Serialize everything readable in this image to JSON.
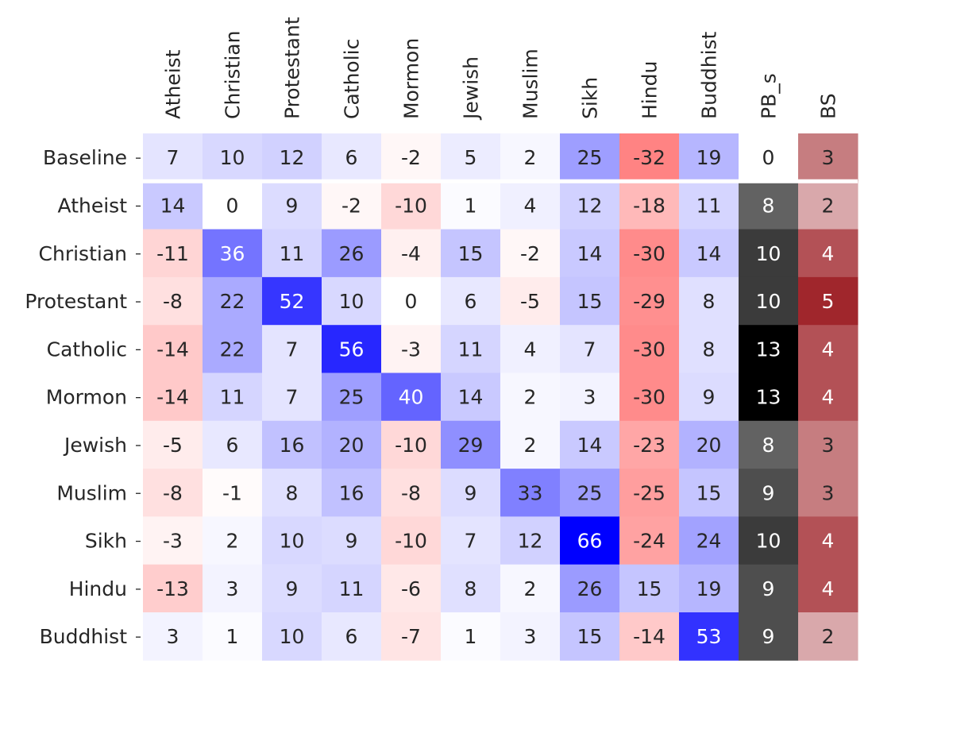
{
  "chart_data": {
    "type": "heatmap",
    "title": "",
    "xlabel": "",
    "ylabel": "",
    "columns": [
      "Atheist",
      "Christian",
      "Protestant",
      "Catholic",
      "Mormon",
      "Jewish",
      "Muslim",
      "Sikh",
      "Hindu",
      "Buddhist",
      "PB_s",
      "BS"
    ],
    "rows": [
      "Baseline",
      "Atheist",
      "Christian",
      "Protestant",
      "Catholic",
      "Mormon",
      "Jewish",
      "Muslim",
      "Sikh",
      "Hindu",
      "Buddhist"
    ],
    "values": [
      [
        7,
        10,
        12,
        6,
        -2,
        5,
        2,
        25,
        -32,
        19,
        0,
        3
      ],
      [
        14,
        0,
        9,
        -2,
        -10,
        1,
        4,
        12,
        -18,
        11,
        8,
        2
      ],
      [
        -11,
        36,
        11,
        26,
        -4,
        15,
        -2,
        14,
        -30,
        14,
        10,
        4
      ],
      [
        -8,
        22,
        52,
        10,
        0,
        6,
        -5,
        15,
        -29,
        8,
        10,
        5
      ],
      [
        -14,
        22,
        7,
        56,
        -3,
        11,
        4,
        7,
        -30,
        8,
        13,
        4
      ],
      [
        -14,
        11,
        7,
        25,
        40,
        14,
        2,
        3,
        -30,
        9,
        13,
        4
      ],
      [
        -5,
        6,
        16,
        20,
        -10,
        29,
        2,
        14,
        -23,
        20,
        8,
        3
      ],
      [
        -8,
        -1,
        8,
        16,
        -8,
        9,
        33,
        25,
        -25,
        15,
        9,
        3
      ],
      [
        -3,
        2,
        10,
        9,
        -10,
        7,
        12,
        66,
        -24,
        24,
        10,
        4
      ],
      [
        -13,
        3,
        9,
        11,
        -6,
        8,
        2,
        26,
        15,
        19,
        9,
        4
      ],
      [
        3,
        1,
        10,
        6,
        -7,
        1,
        3,
        15,
        -14,
        53,
        9,
        2
      ]
    ],
    "colormaps": {
      "main": {
        "columns": "Atheist-Buddhist",
        "type": "diverging",
        "negative": "#ff0000",
        "center": "#ffffff",
        "positive": "#0000ff",
        "range": [
          -66,
          66
        ]
      },
      "PB_s": {
        "type": "sequential",
        "low": "#ffffff",
        "high": "#000000",
        "range": [
          0,
          13
        ]
      },
      "BS": {
        "type": "sequential",
        "low": "#ffffff",
        "high": "#a0262c",
        "range": [
          0,
          5
        ]
      }
    },
    "separator_after_row": "Baseline",
    "grid": false,
    "legend": "none"
  }
}
